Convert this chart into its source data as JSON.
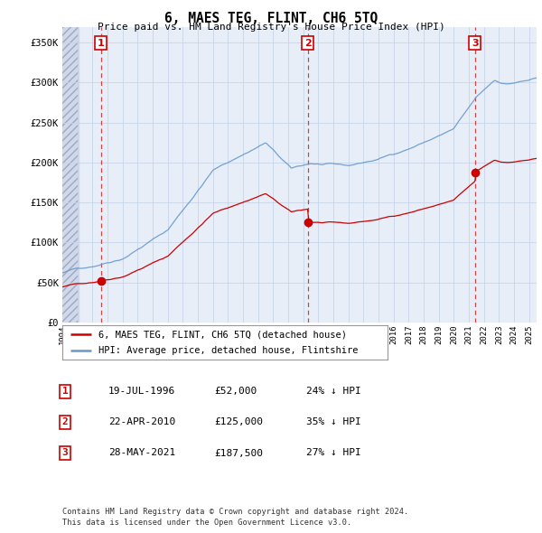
{
  "title": "6, MAES TEG, FLINT, CH6 5TQ",
  "subtitle": "Price paid vs. HM Land Registry's House Price Index (HPI)",
  "ylabel_ticks": [
    "£0",
    "£50K",
    "£100K",
    "£150K",
    "£200K",
    "£250K",
    "£300K",
    "£350K"
  ],
  "ytick_values": [
    0,
    50000,
    100000,
    150000,
    200000,
    250000,
    300000,
    350000
  ],
  "ylim": [
    0,
    370000
  ],
  "xlim_start": 1994.0,
  "xlim_end": 2025.5,
  "sale_dates": [
    1996.55,
    2010.31,
    2021.41
  ],
  "sale_prices": [
    52000,
    125000,
    187500
  ],
  "sale_labels": [
    "1",
    "2",
    "3"
  ],
  "legend_entries": [
    "6, MAES TEG, FLINT, CH6 5TQ (detached house)",
    "HPI: Average price, detached house, Flintshire"
  ],
  "legend_colors": [
    "#cc0000",
    "#6699cc"
  ],
  "footnote1": "Contains HM Land Registry data © Crown copyright and database right 2024.",
  "footnote2": "This data is licensed under the Open Government Licence v3.0.",
  "table_rows": [
    [
      "1",
      "19-JUL-1996",
      "£52,000",
      "24% ↓ HPI"
    ],
    [
      "2",
      "22-APR-2010",
      "£125,000",
      "35% ↓ HPI"
    ],
    [
      "3",
      "28-MAY-2021",
      "£187,500",
      "27% ↓ HPI"
    ]
  ],
  "hpi_color": "#6699cc",
  "sale_line_color": "#cc0000",
  "grid_color": "#c8d4e8",
  "bg_color": "#ffffff",
  "plot_bg_color": "#e8eef8",
  "hatch_bg_color": "#d0d8ec"
}
